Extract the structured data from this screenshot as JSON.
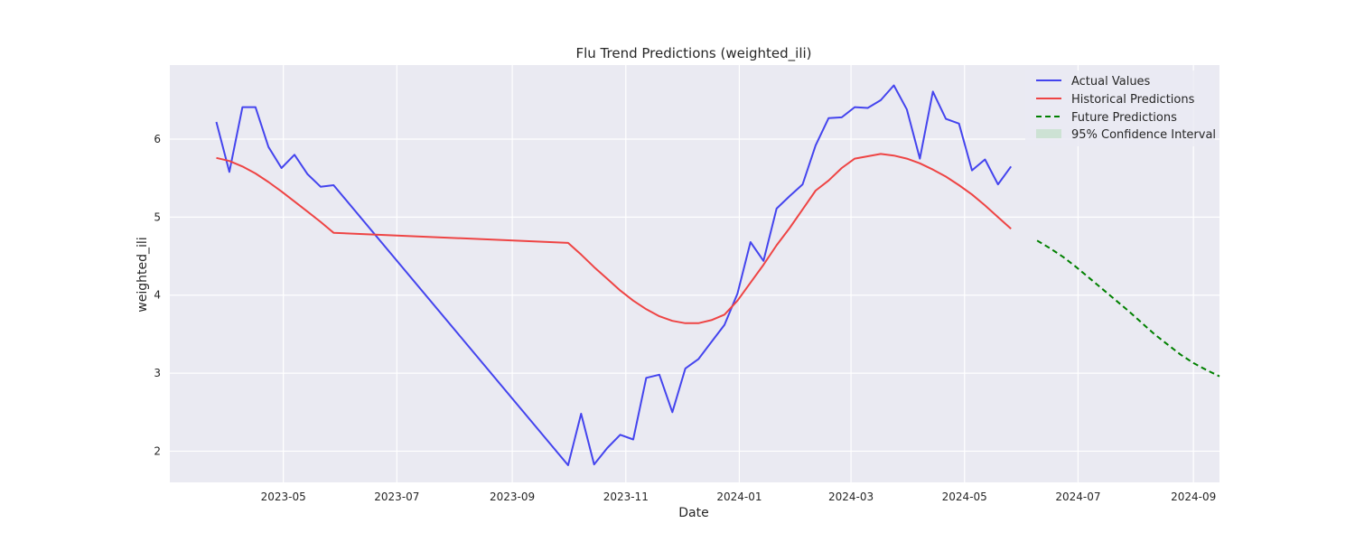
{
  "chart_data": {
    "type": "line",
    "title": "Flu Trend Predictions (weighted_ili)",
    "xlabel": "Date",
    "ylabel": "weighted_ili",
    "xlim": [
      "2023-03-01",
      "2024-09-15"
    ],
    "ylim": [
      1.6,
      6.95
    ],
    "x_ticks": [
      "2023-05-01",
      "2023-07-01",
      "2023-09-01",
      "2023-11-01",
      "2024-01-01",
      "2024-03-01",
      "2024-05-01",
      "2024-07-01",
      "2024-09-01"
    ],
    "x_tick_labels": [
      "2023-05",
      "2023-07",
      "2023-09",
      "2023-11",
      "2024-01",
      "2024-03",
      "2024-05",
      "2024-07",
      "2024-09"
    ],
    "y_ticks": [
      2,
      3,
      4,
      5,
      6
    ],
    "y_tick_labels": [
      "2",
      "3",
      "4",
      "5",
      "6"
    ],
    "grid": true,
    "legend_position": "top-right",
    "colors": {
      "background": "#eaeaf2",
      "grid": "#ffffff",
      "actual": "#4444ee",
      "historical": "#ee4444",
      "future": "#008000",
      "ci": "#b9dcc0"
    },
    "series": [
      {
        "name": "Actual Values",
        "style": "solid",
        "points": [
          [
            "2023-03-26",
            6.22
          ],
          [
            "2023-04-02",
            5.58
          ],
          [
            "2023-04-09",
            6.41
          ],
          [
            "2023-04-16",
            6.41
          ],
          [
            "2023-04-23",
            5.9
          ],
          [
            "2023-04-30",
            5.63
          ],
          [
            "2023-05-07",
            5.8
          ],
          [
            "2023-05-14",
            5.55
          ],
          [
            "2023-05-21",
            5.39
          ],
          [
            "2023-05-28",
            5.41
          ],
          [
            "2023-10-01",
            1.82
          ],
          [
            "2023-10-08",
            2.48
          ],
          [
            "2023-10-15",
            1.83
          ],
          [
            "2023-10-22",
            2.04
          ],
          [
            "2023-10-29",
            2.21
          ],
          [
            "2023-11-05",
            2.15
          ],
          [
            "2023-11-12",
            2.94
          ],
          [
            "2023-11-19",
            2.98
          ],
          [
            "2023-11-26",
            2.5
          ],
          [
            "2023-12-03",
            3.06
          ],
          [
            "2023-12-10",
            3.18
          ],
          [
            "2023-12-17",
            3.4
          ],
          [
            "2023-12-24",
            3.62
          ],
          [
            "2023-12-31",
            4.02
          ],
          [
            "2024-01-07",
            4.68
          ],
          [
            "2024-01-14",
            4.44
          ],
          [
            "2024-01-21",
            5.11
          ],
          [
            "2024-01-28",
            5.27
          ],
          [
            "2024-02-04",
            5.42
          ],
          [
            "2024-02-11",
            5.92
          ],
          [
            "2024-02-18",
            6.27
          ],
          [
            "2024-02-25",
            6.28
          ],
          [
            "2024-03-03",
            6.41
          ],
          [
            "2024-03-10",
            6.4
          ],
          [
            "2024-03-17",
            6.5
          ],
          [
            "2024-03-24",
            6.69
          ],
          [
            "2024-03-31",
            6.38
          ],
          [
            "2024-04-07",
            5.75
          ],
          [
            "2024-04-14",
            6.61
          ],
          [
            "2024-04-21",
            6.26
          ],
          [
            "2024-04-28",
            6.2
          ],
          [
            "2024-05-05",
            5.6
          ],
          [
            "2024-05-12",
            5.74
          ],
          [
            "2024-05-19",
            5.42
          ],
          [
            "2024-05-26",
            5.65
          ]
        ]
      },
      {
        "name": "Historical Predictions",
        "style": "solid",
        "points": [
          [
            "2023-03-26",
            5.76
          ],
          [
            "2023-04-02",
            5.72
          ],
          [
            "2023-04-09",
            5.65
          ],
          [
            "2023-04-16",
            5.56
          ],
          [
            "2023-04-23",
            5.45
          ],
          [
            "2023-04-30",
            5.33
          ],
          [
            "2023-05-07",
            5.2
          ],
          [
            "2023-05-14",
            5.07
          ],
          [
            "2023-05-21",
            4.94
          ],
          [
            "2023-05-28",
            4.8
          ],
          [
            "2023-10-01",
            4.67
          ],
          [
            "2023-10-08",
            4.52
          ],
          [
            "2023-10-15",
            4.36
          ],
          [
            "2023-10-22",
            4.21
          ],
          [
            "2023-10-29",
            4.06
          ],
          [
            "2023-11-05",
            3.93
          ],
          [
            "2023-11-12",
            3.82
          ],
          [
            "2023-11-19",
            3.73
          ],
          [
            "2023-11-26",
            3.67
          ],
          [
            "2023-12-03",
            3.64
          ],
          [
            "2023-12-10",
            3.64
          ],
          [
            "2023-12-17",
            3.68
          ],
          [
            "2023-12-24",
            3.75
          ],
          [
            "2023-12-31",
            3.93
          ],
          [
            "2024-01-07",
            4.16
          ],
          [
            "2024-01-14",
            4.39
          ],
          [
            "2024-01-21",
            4.64
          ],
          [
            "2024-01-28",
            4.86
          ],
          [
            "2024-02-04",
            5.1
          ],
          [
            "2024-02-11",
            5.34
          ],
          [
            "2024-02-18",
            5.47
          ],
          [
            "2024-02-25",
            5.63
          ],
          [
            "2024-03-03",
            5.75
          ],
          [
            "2024-03-10",
            5.78
          ],
          [
            "2024-03-17",
            5.81
          ],
          [
            "2024-03-24",
            5.79
          ],
          [
            "2024-03-31",
            5.75
          ],
          [
            "2024-04-07",
            5.69
          ],
          [
            "2024-04-14",
            5.61
          ],
          [
            "2024-04-21",
            5.52
          ],
          [
            "2024-04-28",
            5.41
          ],
          [
            "2024-05-05",
            5.29
          ],
          [
            "2024-05-12",
            5.15
          ],
          [
            "2024-05-19",
            5.0
          ],
          [
            "2024-05-26",
            4.85
          ]
        ]
      },
      {
        "name": "Future Predictions",
        "style": "dashed",
        "points": [
          [
            "2024-06-09",
            4.7
          ],
          [
            "2024-06-16",
            4.6
          ],
          [
            "2024-06-23",
            4.49
          ],
          [
            "2024-06-30",
            4.36
          ],
          [
            "2024-07-07",
            4.22
          ],
          [
            "2024-07-14",
            4.08
          ],
          [
            "2024-07-21",
            3.94
          ],
          [
            "2024-07-28",
            3.8
          ],
          [
            "2024-08-04",
            3.65
          ],
          [
            "2024-08-11",
            3.5
          ],
          [
            "2024-08-18",
            3.37
          ],
          [
            "2024-08-25",
            3.24
          ],
          [
            "2024-09-01",
            3.13
          ],
          [
            "2024-09-08",
            3.04
          ],
          [
            "2024-09-15",
            2.96
          ]
        ]
      }
    ],
    "confidence_interval": {
      "name": "95% Confidence Interval"
    }
  }
}
